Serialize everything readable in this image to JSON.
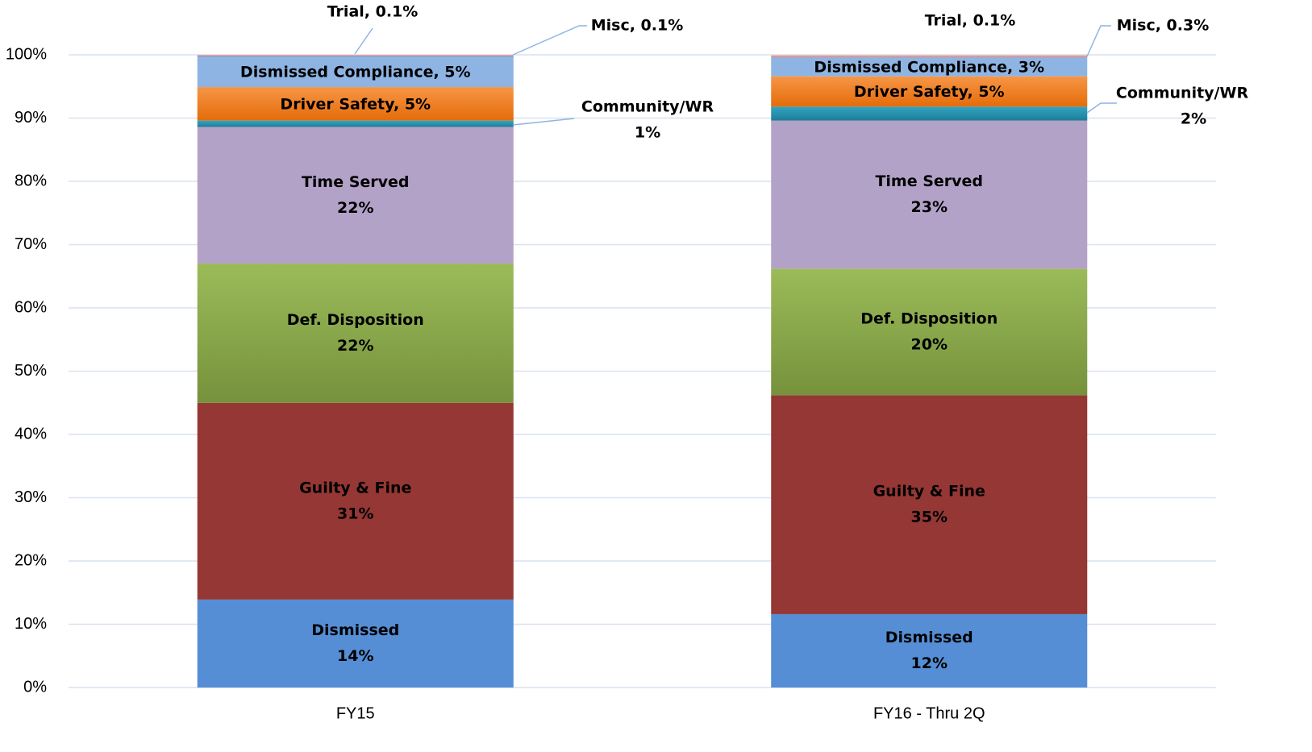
{
  "chart_data": {
    "type": "stacked_bar",
    "categories": [
      "FY15",
      "FY16 - Thru 2Q"
    ],
    "ylim": [
      0,
      100
    ],
    "yticks": [
      {
        "value": 0,
        "label": "0%"
      },
      {
        "value": 10,
        "label": "10%"
      },
      {
        "value": 20,
        "label": "20%"
      },
      {
        "value": 30,
        "label": "30%"
      },
      {
        "value": 40,
        "label": "40%"
      },
      {
        "value": 50,
        "label": "50%"
      },
      {
        "value": 60,
        "label": "60%"
      },
      {
        "value": 70,
        "label": "70%"
      },
      {
        "value": 80,
        "label": "80%"
      },
      {
        "value": 90,
        "label": "90%"
      },
      {
        "value": 100,
        "label": "100%"
      }
    ],
    "grid": true,
    "series": [
      {
        "name": "Dismissed",
        "color": "#558ed5",
        "values": [
          13.9,
          11.6
        ],
        "value_labels": [
          "14%",
          "12%"
        ]
      },
      {
        "name": "Guilty & Fine",
        "color": "#953735",
        "values": [
          31.1,
          34.6
        ],
        "value_labels": [
          "31%",
          "35%"
        ]
      },
      {
        "name": "Def. Disposition",
        "color": "#9bbb59",
        "values": [
          22.0,
          20.0
        ],
        "value_labels": [
          "22%",
          "20%"
        ]
      },
      {
        "name": "Time Served",
        "color": "#b3a2c7",
        "values": [
          21.6,
          23.4
        ],
        "value_labels": [
          "22%",
          "23%"
        ]
      },
      {
        "name": "Community/WR",
        "color": "#31a5c4",
        "values": [
          1.0,
          2.2
        ],
        "value_labels": [
          "1%",
          "2%"
        ]
      },
      {
        "name": "Driver Safety",
        "color": "#f79646",
        "values": [
          5.3,
          4.8
        ],
        "value_labels": [
          "Driver Safety, 5%",
          "Driver Safety, 5%"
        ]
      },
      {
        "name": "Dismissed Compliance",
        "color": "#8eb4e3",
        "values": [
          4.9,
          3.0
        ],
        "value_labels": [
          "Dismissed Compliance, 5%",
          "Dismissed Compliance, 3%"
        ]
      },
      {
        "name": "Trial",
        "color": "#c0504d",
        "values": [
          0.1,
          0.1
        ],
        "value_labels": [
          "Trial, 0.1%",
          "Trial, 0.1%"
        ]
      },
      {
        "name": "Misc",
        "color": "#e6b9b8",
        "values": [
          0.1,
          0.3
        ],
        "value_labels": [
          "Misc, 0.1%",
          "Misc, 0.3%"
        ]
      }
    ]
  }
}
